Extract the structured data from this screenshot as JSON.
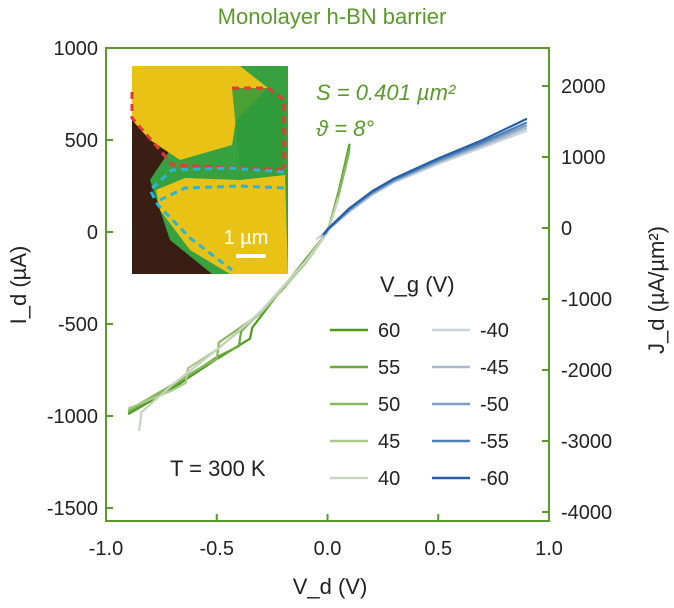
{
  "title": "Monolayer h-BN barrier",
  "chart_data": {
    "type": "line",
    "title": "Monolayer h-BN barrier",
    "xlabel": "V_d (V)",
    "ylabel_left": "I_d (µA)",
    "ylabel_right": "J_d (µA/µm²)",
    "xlim": [
      -1.0,
      1.0
    ],
    "ylim_left": [
      -1600,
      1000
    ],
    "ylim_right": [
      -4000,
      2500
    ],
    "x_ticks": [
      "-1.0",
      "-0.5",
      "0.0",
      "0.5",
      "1.0"
    ],
    "y_ticks_left": [
      "1000",
      "500",
      "0",
      "-500",
      "-1000",
      "-1500"
    ],
    "y_ticks_right": [
      "2000",
      "1000",
      "0",
      "-1000",
      "-2000",
      "-3000",
      "-4000"
    ],
    "legend_title": "V_g (V)",
    "legend_placement": "bottom-right",
    "annotations": {
      "area": "S = 0.401 µm²",
      "angle": "ϑ = 8°",
      "temperature": "T = 300 K",
      "scale_bar": "1 µm"
    },
    "series": [
      {
        "name": "60",
        "color": "#4e9a1e",
        "x": [
          -0.9,
          -0.7,
          -0.5,
          -0.35,
          -0.34,
          -0.2,
          -0.1,
          0.0,
          0.05,
          0.1
        ],
        "y": [
          -990,
          -850,
          -690,
          -580,
          -520,
          -300,
          -150,
          0,
          220,
          480
        ]
      },
      {
        "name": "55",
        "color": "#6aa83a",
        "x": [
          -0.9,
          -0.7,
          -0.5,
          -0.4,
          -0.39,
          -0.2,
          -0.1,
          0.0,
          0.05,
          0.1
        ],
        "y": [
          -980,
          -840,
          -680,
          -620,
          -540,
          -310,
          -160,
          0,
          210,
          460
        ]
      },
      {
        "name": "50",
        "color": "#8ab860",
        "x": [
          -0.9,
          -0.7,
          -0.55,
          -0.5,
          -0.49,
          -0.3,
          -0.1,
          0.0,
          0.05,
          0.1
        ],
        "y": [
          -970,
          -830,
          -720,
          -690,
          -600,
          -440,
          -170,
          0,
          200,
          440
        ]
      },
      {
        "name": "45",
        "color": "#a9c98a",
        "x": [
          -0.9,
          -0.7,
          -0.64,
          -0.63,
          -0.5,
          -0.3,
          -0.1,
          0.0,
          0.05
        ],
        "y": [
          -960,
          -860,
          -820,
          -740,
          -640,
          -440,
          -170,
          0,
          190
        ]
      },
      {
        "name": "40",
        "color": "#c7d4bf",
        "x": [
          -0.85,
          -0.84,
          -0.7,
          -0.5,
          -0.3,
          -0.1,
          0.0,
          0.05
        ],
        "y": [
          -1080,
          -980,
          -830,
          -640,
          -430,
          -160,
          0,
          180
        ]
      },
      {
        "name": "-40",
        "color": "#c8d3de",
        "x": [
          -0.05,
          0.0,
          0.1,
          0.2,
          0.3,
          0.5,
          0.7,
          0.9
        ],
        "y": [
          -40,
          10,
          110,
          200,
          270,
          370,
          460,
          550
        ]
      },
      {
        "name": "-45",
        "color": "#a7bacd",
        "x": [
          -0.03,
          0.0,
          0.1,
          0.2,
          0.3,
          0.5,
          0.7,
          0.9
        ],
        "y": [
          -30,
          10,
          115,
          205,
          275,
          378,
          470,
          565
        ]
      },
      {
        "name": "-50",
        "color": "#7f9fc0",
        "x": [
          -0.02,
          0.0,
          0.1,
          0.2,
          0.3,
          0.5,
          0.7,
          0.9
        ],
        "y": [
          -20,
          10,
          120,
          210,
          280,
          385,
          478,
          580
        ]
      },
      {
        "name": "-55",
        "color": "#4b7fb6",
        "x": [
          -0.01,
          0.0,
          0.1,
          0.2,
          0.3,
          0.5,
          0.7,
          0.9
        ],
        "y": [
          -10,
          12,
          125,
          215,
          285,
          392,
          488,
          595
        ]
      },
      {
        "name": "-60",
        "color": "#2560a8",
        "x": [
          -0.02,
          0.0,
          0.1,
          0.2,
          0.3,
          0.5,
          0.7,
          0.9
        ],
        "y": [
          -15,
          15,
          130,
          220,
          290,
          400,
          500,
          615
        ]
      }
    ]
  },
  "colors": {
    "axis_green": "#5a9a2a",
    "text_dark": "#222222"
  }
}
